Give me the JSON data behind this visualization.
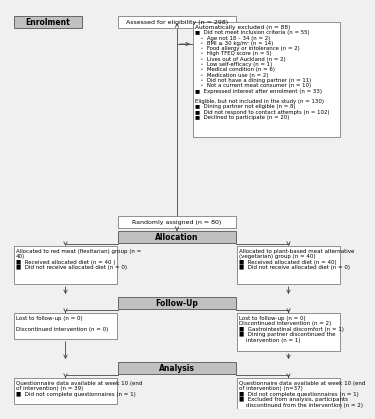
{
  "bg_color": "#f0f0f0",
  "box_bg": "#ffffff",
  "box_border": "#666666",
  "header_bg": "#c0c0c0",
  "header_text": "#000000",
  "line_color": "#444444",
  "enrolment_label": "Enrolment",
  "allocation_label": "Allocation",
  "followup_label": "Follow-Up",
  "analysis_label": "Analysis",
  "assessed_text": "Assessed for eligibility (n = 298)",
  "auto_excluded_title": "Automatically excluded (n = 88)",
  "auto_excluded_lines": [
    "■  Did not meet inclusion criteria (n = 55)",
    "   ◦  Age not 18 – 34 (n = 2)",
    "   ◦  BMI ≥ 30 kg/m² (n = 14)",
    "   ◦  Food allergy or intolerance (n = 2)",
    "   ◦  High TFEQ score (n = 5)",
    "   ◦  Lives out of Auckland (n = 2)",
    "   ◦  Low self-efficacy (n = 1)",
    "   ◦  Medical condition (n = 6)",
    "   ◦  Medication use (n = 2)",
    "   ◦  Did not have a dining partner (n = 11)",
    "   ◦  Not a current meat consumer (n = 10)",
    "■  Expressed interest after enrolment (n = 33)",
    "",
    "Eligible, but not included in the study (n = 130)",
    "■  Dining partner not eligible (n = 8)",
    "■  Did not respond to contact attempts (n = 102)",
    "■  Declined to participate (n = 20)"
  ],
  "randomly_text": "Randomly assigned (n = 80)",
  "left_alloc_lines": [
    "Allocated to red meat (flexitarian) group (n =",
    "40)",
    "■  Received allocated diet (n = 40 )",
    "■  Did not receive allocated diet (n = 0)"
  ],
  "right_alloc_lines": [
    "Allocated to plant-based meat alternative",
    "(vegetarian) group (n = 40)",
    "■  Received allocated diet (n = 40)",
    "■  Did not receive allocated diet (n = 0)"
  ],
  "left_follow_lines": [
    "Lost to follow-up (n = 0)",
    "",
    "Discontinued intervention (n = 0)"
  ],
  "right_follow_lines": [
    "Lost to follow-up (n = 0)",
    "Discontinued intervention (n = 2)",
    "■  Gastrointestinal discomfort (n = 1)",
    "■  Dining partner discontinued the",
    "    intervention (n = 1)"
  ],
  "left_analysis_lines": [
    "Questionnaire data available at week 10 (end",
    "of intervention) (n = 39)",
    "■  Did not complete questionnaires (n = 1)"
  ],
  "right_analysis_lines": [
    "Questionnaire data available at week 10 (end",
    "of intervention) (n=37)",
    "■  Did not complete questionnaires (n = 1)",
    "■  Excluded from analysis, participants",
    "    discontinued from the intervention (n = 2)"
  ]
}
